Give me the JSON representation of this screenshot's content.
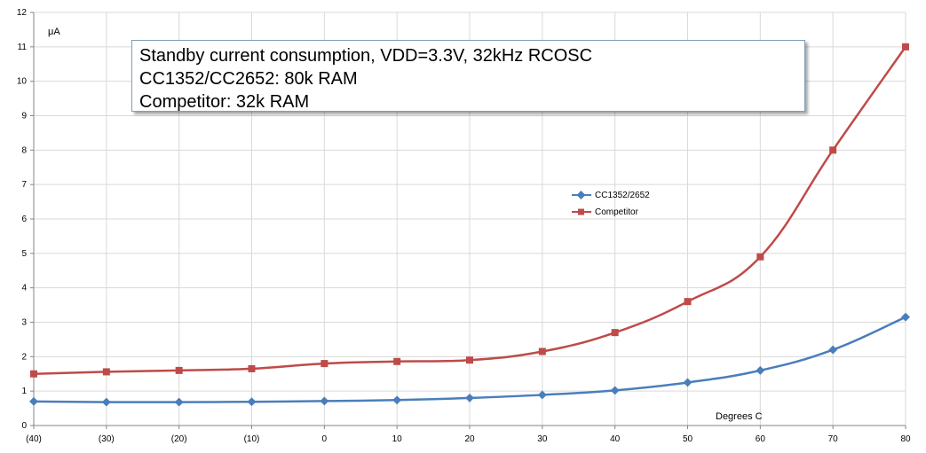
{
  "chart_data": {
    "type": "line",
    "title": [
      "Standby current consumption, VDD=3.3V, 32kHz RCOSC",
      "CC1352/CC2652: 80k RAM",
      "Competitor: 32k RAM"
    ],
    "xlabel": "Degrees C",
    "ylabel": "μA",
    "x": [
      "(40)",
      "(30)",
      "(20)",
      "(10)",
      "0",
      "10",
      "20",
      "30",
      "40",
      "50",
      "60",
      "70",
      "80"
    ],
    "ylim": [
      0,
      12
    ],
    "yticks": [
      "0",
      "1",
      "2",
      "3",
      "4",
      "5",
      "6",
      "7",
      "8",
      "9",
      "10",
      "11",
      "12"
    ],
    "grid": true,
    "legend_position": "center-right",
    "series": [
      {
        "name": "CC1352/2652",
        "color": "#4a7ebb",
        "marker": "diamond",
        "values": [
          0.7,
          0.68,
          0.68,
          0.69,
          0.71,
          0.74,
          0.8,
          0.89,
          1.02,
          1.25,
          1.6,
          2.2,
          3.15
        ]
      },
      {
        "name": "Competitor",
        "color": "#be4b48",
        "marker": "square",
        "values": [
          1.5,
          1.56,
          1.6,
          1.65,
          1.8,
          1.86,
          1.9,
          2.15,
          2.7,
          3.6,
          4.9,
          8.0,
          11.0
        ]
      }
    ]
  }
}
